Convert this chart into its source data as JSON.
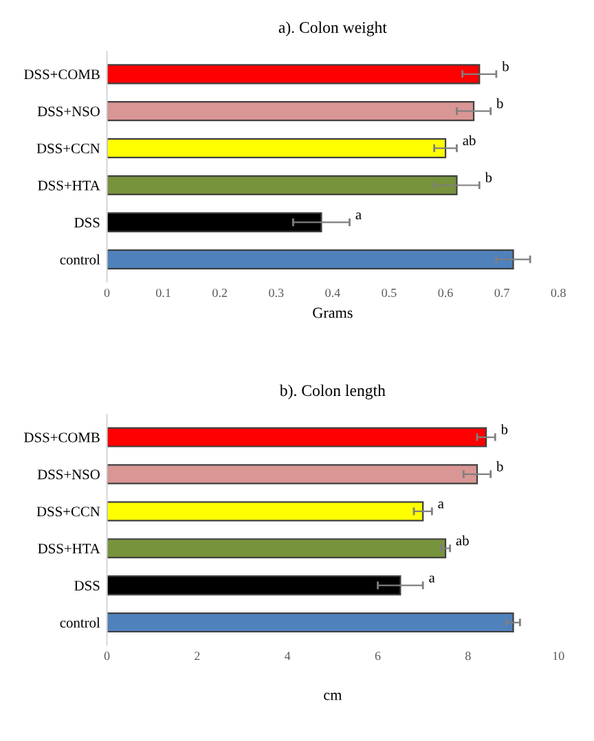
{
  "chart_data": [
    {
      "type": "bar",
      "orientation": "horizontal",
      "title": "a). Colon weight",
      "xlabel": "Grams",
      "categories": [
        "DSS+COMB",
        "DSS+NSO",
        "DSS+CCN",
        "DSS+HTA",
        "DSS",
        "control"
      ],
      "values": [
        0.66,
        0.65,
        0.6,
        0.62,
        0.38,
        0.72
      ],
      "errors": [
        0.03,
        0.03,
        0.02,
        0.04,
        0.05,
        0.03
      ],
      "colors": [
        "#ff0000",
        "#d99694",
        "#ffff00",
        "#77933c",
        "#000000",
        "#4f81bd"
      ],
      "xlim": [
        0,
        0.8
      ],
      "xticks": [
        0,
        0.1,
        0.2,
        0.3,
        0.4,
        0.5,
        0.6,
        0.7,
        0.8
      ],
      "grid": false,
      "legend": false,
      "annotations": [
        {
          "text": "b",
          "x": 0.69,
          "y": "DSS+COMB"
        },
        {
          "text": "b",
          "x": 0.68,
          "y": "DSS+NSO"
        },
        {
          "text": "ab",
          "x": 0.62,
          "y": "DSS+CCN"
        },
        {
          "text": "b",
          "x": 0.66,
          "y": "DSS+HTA"
        },
        {
          "text": "a",
          "x": 0.43,
          "y": "DSS"
        }
      ]
    },
    {
      "type": "bar",
      "orientation": "horizontal",
      "title": "b). Colon length",
      "xlabel": "cm",
      "categories": [
        "DSS+COMB",
        "DSS+NSO",
        "DSS+CCN",
        "DSS+HTA",
        "DSS",
        "control"
      ],
      "values": [
        8.4,
        8.2,
        7.0,
        7.5,
        6.5,
        9.0
      ],
      "errors": [
        0.2,
        0.3,
        0.2,
        0.1,
        0.5,
        0.15
      ],
      "colors": [
        "#ff0000",
        "#d99694",
        "#ffff00",
        "#77933c",
        "#000000",
        "#4f81bd"
      ],
      "xlim": [
        0,
        10
      ],
      "xticks": [
        0,
        2,
        4,
        6,
        8,
        10
      ],
      "grid": false,
      "legend": false,
      "annotations": [
        {
          "text": "b",
          "x": 8.6,
          "y": "DSS+COMB"
        },
        {
          "text": "b",
          "x": 8.5,
          "y": "DSS+NSO"
        },
        {
          "text": "a",
          "x": 7.2,
          "y": "DSS+CCN"
        },
        {
          "text": "ab",
          "x": 7.6,
          "y": "DSS+HTA"
        },
        {
          "text": "a",
          "x": 7.0,
          "y": "DSS"
        }
      ]
    }
  ]
}
